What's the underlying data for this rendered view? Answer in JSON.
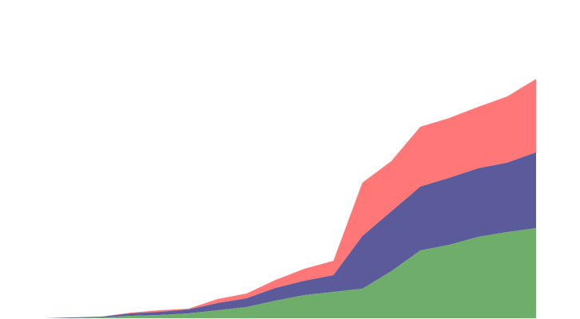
{
  "chart_data": {
    "type": "area",
    "stacked": true,
    "title": "",
    "xlabel": "",
    "ylabel": "",
    "x": [
      1,
      2,
      3,
      4,
      5,
      6,
      7,
      8,
      9,
      10,
      11,
      12,
      13,
      14,
      15,
      16,
      17,
      18
    ],
    "xlim": [
      1,
      18
    ],
    "ylim": [
      0,
      309
    ],
    "grid": false,
    "axes_visible": false,
    "legend": "none",
    "series": [
      {
        "color": "#6fad6b",
        "values": [
          0,
          0,
          1,
          3,
          4,
          6,
          10,
          14,
          22,
          29,
          33,
          37,
          59,
          85,
          92,
          102,
          108,
          113
        ]
      },
      {
        "color": "#5b5b9b",
        "values": [
          0,
          1,
          1,
          3,
          4,
          5,
          9,
          11,
          16,
          18,
          21,
          66,
          75,
          80,
          84,
          86,
          87,
          95
        ]
      },
      {
        "color": "#ff7777",
        "values": [
          0,
          0,
          0,
          1,
          2,
          1,
          5,
          6,
          10,
          15,
          18,
          67,
          63,
          75,
          75,
          77,
          83,
          92
        ]
      }
    ]
  }
}
